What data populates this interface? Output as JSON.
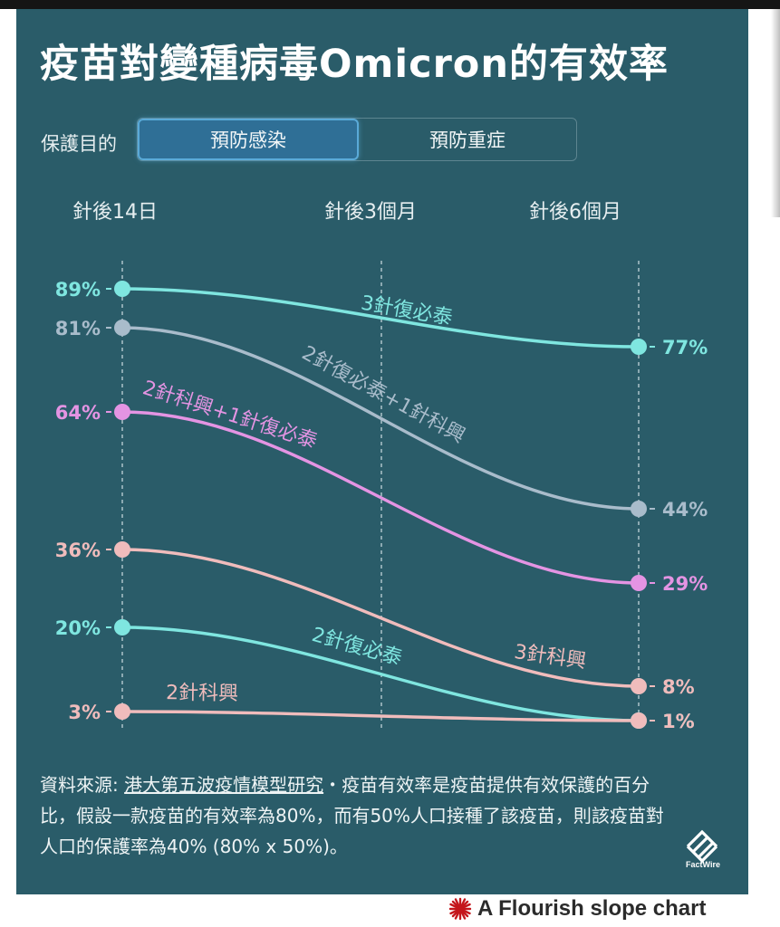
{
  "title": "疫苗對變種病毒Omicron的有效率",
  "toggle": {
    "label": "保護目的",
    "options": [
      "預防感染",
      "預防重症"
    ],
    "selected": "預防感染"
  },
  "chart_data": {
    "type": "line",
    "x": [
      "針後14日",
      "針後3個月",
      "針後6個月"
    ],
    "series": [
      {
        "name": "3針復必泰",
        "start": 89,
        "end": 77,
        "start_label": "89%",
        "end_label": "77%",
        "color": "#7fe6e0"
      },
      {
        "name": "2針復必泰+1針科興",
        "start": 81,
        "end": 44,
        "start_label": "81%",
        "end_label": "44%",
        "color": "#a9bccb"
      },
      {
        "name": "2針科興+1針復必泰",
        "start": 64,
        "end": 29,
        "start_label": "64%",
        "end_label": "29%",
        "color": "#e494e3"
      },
      {
        "name": "3針科興",
        "start": 36,
        "end": 8,
        "start_label": "36%",
        "end_label": "8%",
        "color": "#f0bcbc"
      },
      {
        "name": "2針復必泰",
        "start": 20,
        "end": 1,
        "start_label": "20%",
        "end_label": "1%",
        "color": "#7fe6e0"
      },
      {
        "name": "2針科興",
        "start": 3,
        "end": 1,
        "start_label": "3%",
        "end_label": "1%",
        "color": "#f0bcbc"
      }
    ]
  },
  "footnote": {
    "source_prefix": "資料來源: ",
    "source_link": "港大第五波疫情模型研究",
    "text": "・疫苗有效率是疫苗提供有效保護的百分比，假設一款疫苗的有效率為80%，而有50%人口接種了該疫苗，則該疫苗對人口的保護率為40% (80% x 50%)。"
  },
  "logo_text": "FactWire",
  "credit": "A Flourish slope chart",
  "colors": {
    "background": "#2a5c69",
    "accent": "#5aaad8",
    "credit_red": "#c4161c"
  }
}
